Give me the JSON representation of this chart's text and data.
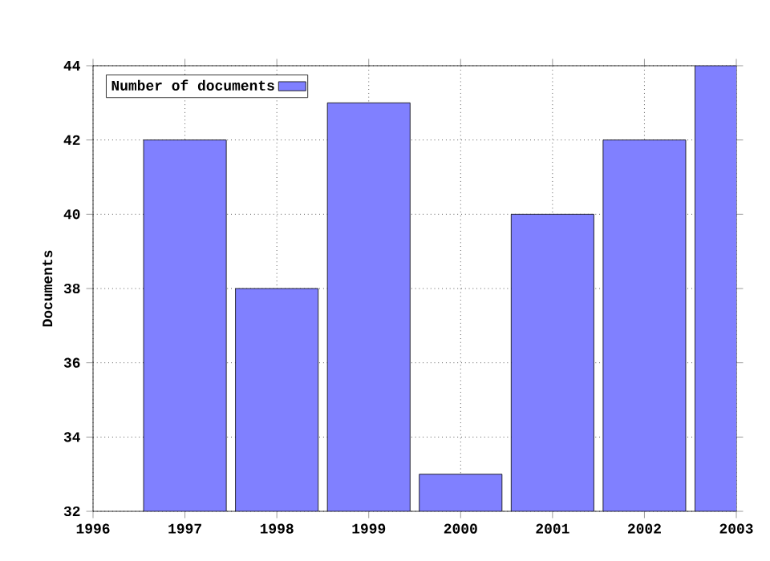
{
  "chart_data": {
    "type": "bar",
    "ylabel": "Documents",
    "x": [
      1997,
      1998,
      1999,
      2000,
      2001,
      2002,
      2003
    ],
    "series": [
      {
        "name": "Number of documents",
        "color": "#8080ff",
        "values": [
          42,
          38,
          43,
          33,
          40,
          42,
          44
        ]
      }
    ],
    "xlim": [
      1996,
      2003
    ],
    "xticks": [
      1996,
      1997,
      1998,
      1999,
      2000,
      2001,
      2002,
      2003
    ],
    "ylim": [
      32,
      44
    ],
    "yticks": [
      32,
      34,
      36,
      38,
      40,
      42,
      44
    ],
    "grid": true,
    "legend": "top left"
  }
}
